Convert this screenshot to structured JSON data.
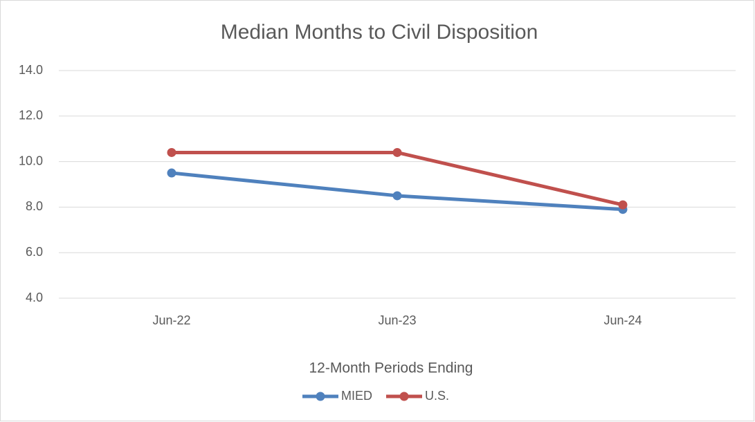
{
  "chart_data": {
    "type": "line",
    "title": "Median Months to Civil Disposition",
    "x_label": "12-Month Periods Ending",
    "categories": [
      "Jun-22",
      "Jun-23",
      "Jun-24"
    ],
    "series": [
      {
        "name": "MIED",
        "color": "#4f81bd",
        "values": [
          9.5,
          8.5,
          7.9
        ]
      },
      {
        "name": "U.S.",
        "color": "#c0504d",
        "values": [
          10.4,
          10.4,
          8.1
        ]
      }
    ],
    "ylim": [
      4,
      14
    ],
    "yticks": [
      {
        "value": 4,
        "label": "4.0"
      },
      {
        "value": 6,
        "label": "6.0"
      },
      {
        "value": 8,
        "label": "8.0"
      },
      {
        "value": 10,
        "label": "10.0"
      },
      {
        "value": 12,
        "label": "12.0"
      },
      {
        "value": 14,
        "label": "14.0"
      }
    ],
    "grid": true,
    "legend": "bottom"
  }
}
